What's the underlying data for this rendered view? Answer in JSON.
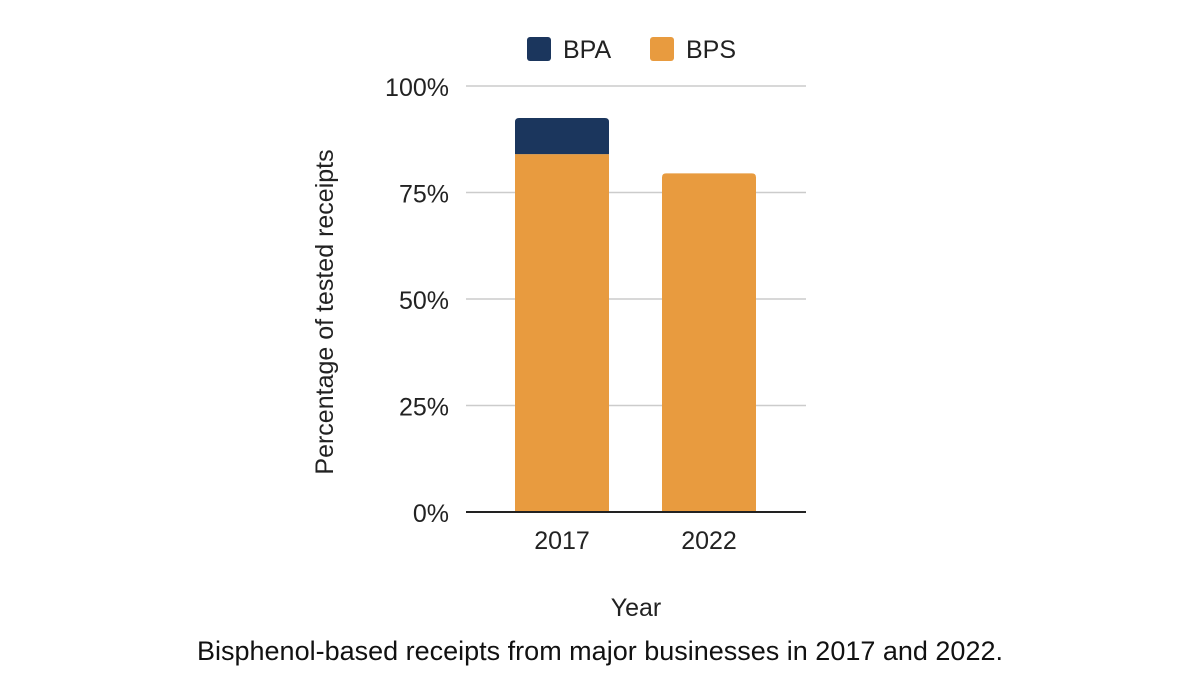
{
  "chart_data": {
    "type": "bar",
    "stacked": true,
    "categories": [
      "2017",
      "2022"
    ],
    "series": [
      {
        "name": "BPS",
        "values": [
          84,
          79.5
        ],
        "color": "#E89B3F"
      },
      {
        "name": "BPA",
        "values": [
          8.5,
          0
        ],
        "color": "#1B365D"
      }
    ],
    "legend": {
      "position": "top",
      "entries": [
        "BPA",
        "BPS"
      ]
    },
    "xlabel": "Year",
    "ylabel": "Percentage of tested receipts",
    "ylim": [
      0,
      100
    ],
    "yticks": [
      0,
      25,
      50,
      75,
      100
    ],
    "ytick_labels": [
      "0%",
      "25%",
      "50%",
      "75%",
      "100%"
    ],
    "grid": true,
    "gridline_color": "#cccccc"
  },
  "caption": "Bisphenol-based receipts from major businesses in 2017 and 2022."
}
